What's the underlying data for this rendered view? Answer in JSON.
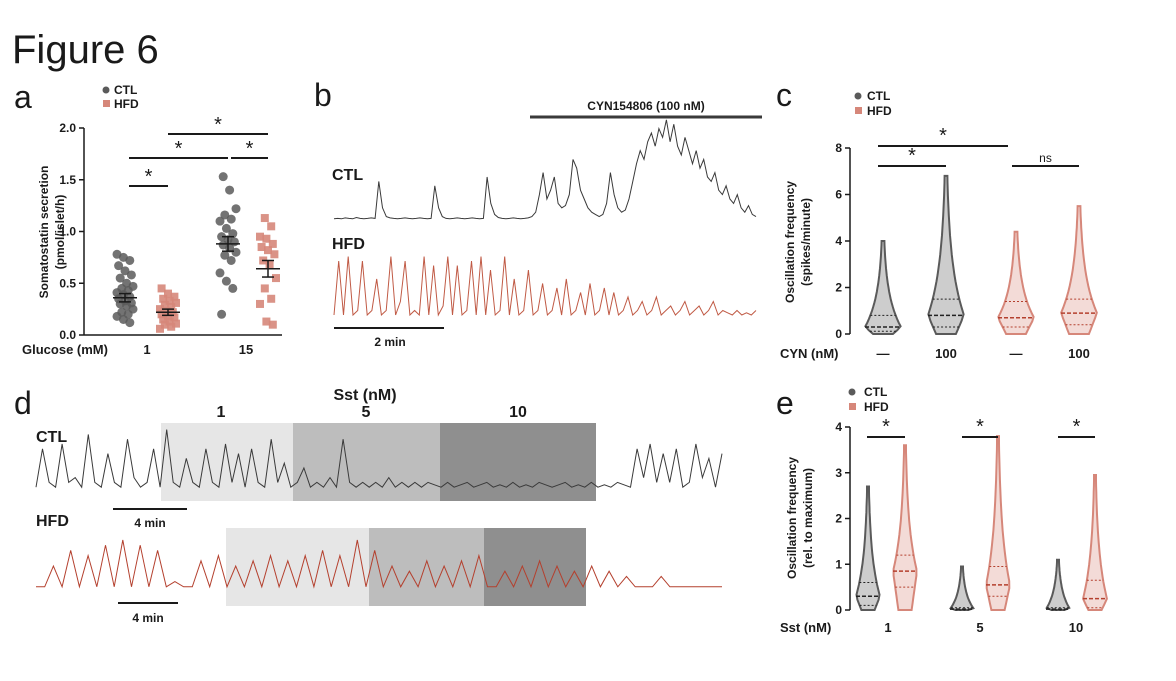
{
  "figure_title": "Figure 6",
  "colors": {
    "ctl": "#5a5a5a",
    "hfd": "#d6877a",
    "hfd_trace": "#c05a45",
    "hfd_trace_d": "#b4402e",
    "ctl_trace": "#3a3a3a"
  },
  "chart_data": [
    {
      "panel": "a",
      "type": "scatter",
      "ylabel": "Somatostatin secretion (pmol/islet/h)",
      "xlabel_prefix": "Glucose (mM)",
      "ylim": [
        0,
        2.0
      ],
      "yticks": [
        "0.0",
        "0.5",
        "1.0",
        "1.5",
        "2.0"
      ],
      "categories": [
        "1",
        "15"
      ],
      "legend": [
        "CTL",
        "HFD"
      ],
      "series": [
        {
          "name": "CTL",
          "group": "1",
          "mean": 0.36,
          "sem": 0.04,
          "values": [
            0.78,
            0.75,
            0.72,
            0.67,
            0.62,
            0.58,
            0.55,
            0.5,
            0.47,
            0.45,
            0.43,
            0.41,
            0.39,
            0.37,
            0.35,
            0.33,
            0.31,
            0.3,
            0.28,
            0.25,
            0.22,
            0.2,
            0.18,
            0.15,
            0.12
          ]
        },
        {
          "name": "HFD",
          "group": "1",
          "mean": 0.22,
          "sem": 0.03,
          "values": [
            0.45,
            0.4,
            0.37,
            0.35,
            0.33,
            0.31,
            0.29,
            0.27,
            0.25,
            0.23,
            0.22,
            0.2,
            0.18,
            0.17,
            0.15,
            0.13,
            0.11,
            0.1,
            0.08,
            0.06
          ]
        },
        {
          "name": "CTL",
          "group": "15",
          "mean": 0.88,
          "sem": 0.07,
          "values": [
            1.53,
            1.4,
            1.22,
            1.16,
            1.12,
            1.1,
            1.03,
            0.98,
            0.95,
            0.92,
            0.9,
            0.87,
            0.84,
            0.8,
            0.77,
            0.72,
            0.6,
            0.52,
            0.45,
            0.2
          ]
        },
        {
          "name": "HFD",
          "group": "15",
          "mean": 0.64,
          "sem": 0.08,
          "values": [
            1.13,
            1.05,
            0.95,
            0.93,
            0.88,
            0.85,
            0.82,
            0.78,
            0.72,
            0.68,
            0.55,
            0.45,
            0.35,
            0.3,
            0.13,
            0.1
          ]
        }
      ],
      "significance": [
        "*",
        "*",
        "*",
        "*"
      ]
    },
    {
      "panel": "b",
      "type": "line",
      "drug_label": "CYN154806 (100 nM)",
      "series": [
        {
          "name": "CTL",
          "values": [
            0.05,
            0.06,
            0.05,
            0.07,
            0.06,
            0.05,
            0.08,
            0.06,
            0.05,
            0.06,
            0.07,
            0.06,
            0.9,
            0.3,
            0.1,
            0.07,
            0.06,
            0.05,
            0.06,
            0.07,
            0.06,
            0.05,
            0.06,
            0.07,
            0.06,
            0.05,
            0.06,
            0.8,
            0.3,
            0.1,
            0.06,
            0.05,
            0.06,
            0.07,
            0.06,
            0.05,
            0.06,
            0.07,
            0.06,
            0.05,
            0.06,
            1.0,
            0.4,
            0.15,
            0.08,
            0.06,
            0.05,
            0.06,
            0.07,
            0.06,
            0.05,
            0.06,
            0.07,
            0.1,
            0.2,
            0.6,
            1.1,
            0.5,
            0.7,
            1.0,
            0.4,
            0.3,
            0.35,
            0.6,
            1.4,
            1.2,
            0.7,
            0.5,
            0.3,
            0.2,
            0.15,
            0.1,
            0.15,
            0.4,
            1.1,
            0.6,
            0.3,
            0.2,
            0.25,
            0.5,
            0.9,
            1.3,
            1.6,
            1.4,
            1.8,
            2.0,
            1.7,
            2.1,
            1.9,
            2.3,
            1.8,
            2.2,
            1.7,
            1.5,
            1.9,
            1.6,
            1.3,
            1.6,
            1.2,
            1.4,
            1.0,
            0.9,
            1.1,
            0.7,
            0.6,
            0.8,
            0.5,
            0.4,
            0.6,
            0.3,
            0.2,
            0.35,
            0.15,
            0.1
          ]
        },
        {
          "name": "HFD",
          "values": [
            0.2,
            1.4,
            0.2,
            1.5,
            0.2,
            0.3,
            1.4,
            0.2,
            0.3,
            1.0,
            0.2,
            0.3,
            1.5,
            0.2,
            0.5,
            1.4,
            0.2,
            0.3,
            0.2,
            1.5,
            0.2,
            1.3,
            0.2,
            0.4,
            1.5,
            0.2,
            1.3,
            0.2,
            0.3,
            1.4,
            0.2,
            1.5,
            0.2,
            1.2,
            0.2,
            0.3,
            1.5,
            0.2,
            1.0,
            0.2,
            0.3,
            1.2,
            0.2,
            0.3,
            0.9,
            0.2,
            0.3,
            0.8,
            0.2,
            1.0,
            0.2,
            0.3,
            0.7,
            0.2,
            0.9,
            0.2,
            0.3,
            0.8,
            0.2,
            0.7,
            0.2,
            0.3,
            0.6,
            0.2,
            0.3,
            0.5,
            0.2,
            0.3,
            0.6,
            0.2,
            0.3,
            0.4,
            0.2,
            0.3,
            0.5,
            0.2,
            0.3,
            0.4,
            0.2,
            0.3,
            0.5,
            0.2,
            0.3,
            0.25,
            0.2,
            0.3,
            0.2,
            0.25,
            0.2,
            0.3
          ]
        }
      ],
      "scalebar_label": "2 min"
    },
    {
      "panel": "c",
      "type": "violin",
      "ylabel": "Oscillation frequency (spikes/minute)",
      "xlabel_prefix": "CYN (nM)",
      "ylim": [
        0,
        8
      ],
      "yticks": [
        "0",
        "2",
        "4",
        "6",
        "8"
      ],
      "categories": [
        "—",
        "100",
        "—",
        "100"
      ],
      "legend": [
        "CTL",
        "HFD"
      ],
      "groups": [
        {
          "name": "CTL",
          "cyn": "—",
          "max": 4.0,
          "median": 0.3,
          "q1": 0.12,
          "q3": 0.8
        },
        {
          "name": "CTL",
          "cyn": "100",
          "max": 6.8,
          "median": 0.8,
          "q1": 0.3,
          "q3": 1.5
        },
        {
          "name": "HFD",
          "cyn": "—",
          "max": 4.4,
          "median": 0.7,
          "q1": 0.3,
          "q3": 1.4
        },
        {
          "name": "HFD",
          "cyn": "100",
          "max": 5.5,
          "median": 0.9,
          "q1": 0.4,
          "q3": 1.5
        }
      ],
      "significance": [
        "*",
        "*",
        "ns"
      ]
    },
    {
      "panel": "d",
      "type": "line",
      "sst_label": "Sst (nM)",
      "concentrations": [
        "1",
        "5",
        "10"
      ],
      "series": [
        {
          "name": "CTL",
          "values": [
            0.1,
            0.9,
            0.2,
            0.1,
            1.0,
            0.2,
            0.3,
            0.1,
            1.2,
            0.2,
            0.1,
            0.8,
            0.2,
            0.1,
            1.1,
            0.3,
            0.1,
            0.2,
            0.9,
            0.1,
            1.3,
            0.2,
            0.1,
            0.7,
            0.2,
            0.1,
            0.9,
            0.2,
            0.1,
            1.0,
            0.2,
            0.8,
            0.1,
            0.9,
            0.2,
            0.1,
            1.1,
            0.2,
            0.6,
            0.1,
            0.2,
            0.5,
            0.1,
            0.2,
            0.1,
            0.3,
            0.1,
            1.1,
            0.2,
            0.1,
            0.2,
            0.1,
            0.2,
            0.1,
            0.3,
            0.1,
            0.2,
            0.1,
            0.2,
            0.1,
            0.2,
            0.15,
            0.1,
            0.2,
            0.1,
            0.15,
            0.2,
            0.1,
            0.15,
            0.2,
            0.1,
            0.15,
            0.1,
            0.2,
            0.1,
            0.15,
            0.1,
            0.2,
            0.15,
            0.1,
            0.15,
            0.2,
            0.1,
            0.15,
            0.1,
            0.2,
            0.1,
            0.15,
            0.1,
            0.2,
            0.15,
            0.1,
            0.9,
            0.3,
            1.0,
            0.2,
            0.8,
            0.2,
            0.9,
            0.1,
            0.2,
            1.0,
            0.3,
            0.7,
            0.1,
            0.8
          ]
        },
        {
          "name": "HFD",
          "values": [
            0.1,
            0.1,
            0.5,
            0.1,
            0.8,
            0.1,
            0.7,
            0.1,
            0.9,
            0.1,
            1.0,
            0.1,
            0.9,
            0.1,
            0.8,
            0.1,
            0.2,
            0.1,
            0.1,
            0.6,
            0.1,
            0.7,
            0.1,
            0.5,
            0.1,
            0.6,
            0.1,
            0.7,
            0.1,
            0.6,
            0.1,
            0.7,
            0.1,
            0.8,
            0.1,
            0.7,
            0.1,
            1.0,
            0.1,
            0.8,
            0.1,
            0.5,
            0.1,
            0.4,
            0.1,
            0.6,
            0.1,
            0.5,
            0.1,
            0.6,
            0.1,
            0.7,
            0.1,
            0.1,
            0.4,
            0.1,
            0.5,
            0.1,
            0.6,
            0.1,
            0.5,
            0.1,
            0.4,
            0.1,
            0.5,
            0.1,
            0.4,
            0.1,
            0.3,
            0.1,
            0.1,
            0.1,
            0.3,
            0.1,
            0.1,
            0.1,
            0.1,
            0.1,
            0.1,
            0.1
          ]
        }
      ],
      "scalebar_label": "4 min"
    },
    {
      "panel": "e",
      "type": "violin",
      "ylabel": "Oscillation frequency (rel. to maximum)",
      "xlabel_prefix": "Sst (nM)",
      "ylim": [
        0,
        4
      ],
      "yticks": [
        "0",
        "1",
        "2",
        "3",
        "4"
      ],
      "categories": [
        "1",
        "5",
        "10"
      ],
      "legend": [
        "CTL",
        "HFD"
      ],
      "groups": [
        {
          "name": "CTL",
          "sst": "1",
          "max": 2.7,
          "median": 0.3,
          "q1": 0.1,
          "q3": 0.6
        },
        {
          "name": "HFD",
          "sst": "1",
          "max": 3.6,
          "median": 0.85,
          "q1": 0.5,
          "q3": 1.2
        },
        {
          "name": "CTL",
          "sst": "5",
          "max": 0.95,
          "median": 0.02,
          "q1": 0.0,
          "q3": 0.05
        },
        {
          "name": "HFD",
          "sst": "5",
          "max": 3.8,
          "median": 0.55,
          "q1": 0.3,
          "q3": 0.95
        },
        {
          "name": "CTL",
          "sst": "10",
          "max": 1.1,
          "median": 0.02,
          "q1": 0.0,
          "q3": 0.05
        },
        {
          "name": "HFD",
          "sst": "10",
          "max": 2.95,
          "median": 0.25,
          "q1": 0.05,
          "q3": 0.65
        }
      ],
      "significance": [
        "*",
        "*",
        "*"
      ]
    }
  ]
}
